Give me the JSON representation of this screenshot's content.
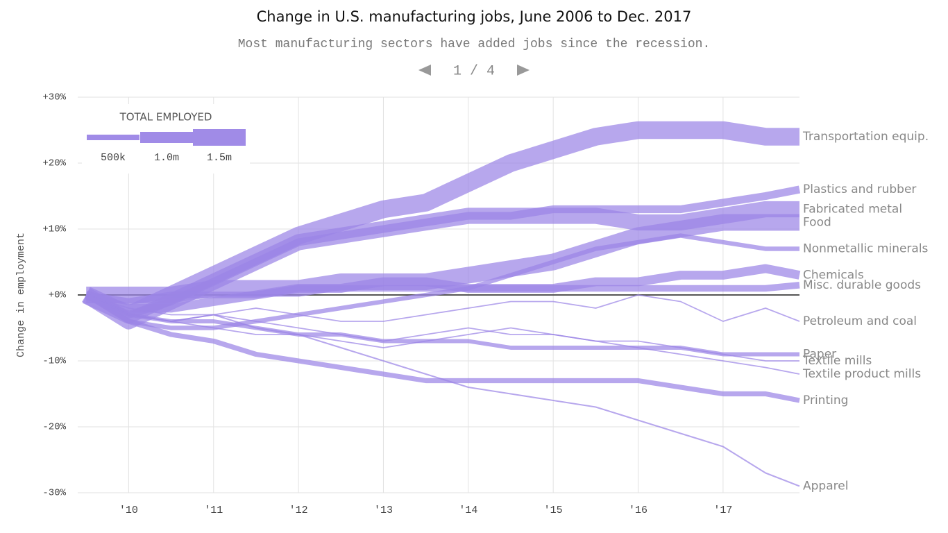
{
  "chart_data": {
    "type": "line",
    "title": "Change in U.S. manufacturing jobs, June 2006 to Dec. 2017",
    "subtitle": "Most manufacturing sectors have added jobs since the recession.",
    "pager": "1 / 4",
    "y_label": "Change in employment",
    "legend_title": "TOTAL EMPLOYED",
    "legend_widths": [
      {
        "value": 500000,
        "label": "500k"
      },
      {
        "value": 1000000,
        "label": "1.0m"
      },
      {
        "value": 1500000,
        "label": "1.5m"
      }
    ],
    "color": "#9b85e6",
    "xlim": [
      2009.4,
      2017.9
    ],
    "ylim": [
      -30,
      30
    ],
    "xticks": [
      {
        "value": 2010,
        "label": "'10"
      },
      {
        "value": 2011,
        "label": "'11"
      },
      {
        "value": 2012,
        "label": "'12"
      },
      {
        "value": 2013,
        "label": "'13"
      },
      {
        "value": 2014,
        "label": "'14"
      },
      {
        "value": 2015,
        "label": "'15"
      },
      {
        "value": 2016,
        "label": "'16"
      },
      {
        "value": 2017,
        "label": "'17"
      }
    ],
    "yticks": [
      {
        "value": 30,
        "label": "+30%"
      },
      {
        "value": 20,
        "label": "+20%"
      },
      {
        "value": 10,
        "label": "+10%"
      },
      {
        "value": 0,
        "label": "+0%"
      },
      {
        "value": -10,
        "label": "-10%"
      },
      {
        "value": -20,
        "label": "-20%"
      },
      {
        "value": -30,
        "label": "-30%"
      }
    ],
    "grid": true,
    "x": [
      2009.5,
      2010,
      2010.5,
      2011,
      2011.5,
      2012,
      2012.5,
      2013,
      2013.5,
      2014,
      2014.5,
      2015,
      2015.5,
      2016,
      2016.5,
      2017,
      2017.5,
      2017.9
    ],
    "series": [
      {
        "name": "Transportation equip.",
        "employed": 1600000,
        "values": [
          0,
          -3,
          0,
          3,
          6,
          9,
          11,
          13,
          14,
          17,
          20,
          22,
          24,
          25,
          25,
          25,
          24,
          24
        ]
      },
      {
        "name": "Plastics and rubber",
        "employed": 700000,
        "values": [
          0,
          -3,
          -1,
          2,
          5,
          8,
          9,
          10,
          11,
          12,
          12,
          13,
          13,
          13,
          13,
          14,
          15,
          16
        ]
      },
      {
        "name": "Fabricated metal",
        "employed": 1450000,
        "values": [
          0,
          -4,
          -1,
          2,
          5,
          8,
          9,
          10,
          11,
          12,
          12,
          12,
          12,
          11,
          11,
          12,
          13,
          13
        ]
      },
      {
        "name": "Food",
        "employed": 1500000,
        "values": [
          0,
          0,
          0,
          1,
          1,
          1,
          2,
          2,
          2,
          3,
          4,
          5,
          7,
          9,
          10,
          11,
          11,
          11
        ]
      },
      {
        "name": "Nonmetallic minerals",
        "employed": 400000,
        "values": [
          0,
          -4,
          -5,
          -5,
          -4,
          -3,
          -2,
          -1,
          0,
          1,
          3,
          5,
          7,
          8,
          9,
          8,
          7,
          7
        ]
      },
      {
        "name": "Chemicals",
        "employed": 800000,
        "values": [
          0,
          -2,
          -2,
          -1,
          0,
          1,
          1,
          2,
          2,
          1,
          1,
          1,
          2,
          2,
          3,
          3,
          4,
          3
        ]
      },
      {
        "name": "Misc. durable goods",
        "employed": 600000,
        "values": [
          0,
          -1,
          0,
          0,
          0,
          1,
          1,
          1,
          1,
          1,
          1,
          1,
          1,
          1,
          1,
          1,
          1,
          1.5
        ]
      },
      {
        "name": "Petroleum and coal",
        "employed": 110000,
        "values": [
          0,
          -2,
          -3,
          -3,
          -2,
          -3,
          -4,
          -4,
          -3,
          -2,
          -1,
          -1,
          -2,
          0,
          -1,
          -4,
          -2,
          -4
        ]
      },
      {
        "name": "Paper",
        "employed": 370000,
        "values": [
          0,
          -3,
          -4,
          -4,
          -5,
          -6,
          -6,
          -7,
          -7,
          -7,
          -8,
          -8,
          -8,
          -8,
          -8,
          -9,
          -9,
          -9
        ]
      },
      {
        "name": "Textile mills",
        "employed": 110000,
        "values": [
          0,
          -3,
          -4,
          -3,
          -4,
          -5,
          -6,
          -7,
          -6,
          -5,
          -6,
          -6,
          -7,
          -7,
          -8,
          -9,
          -10,
          -10
        ]
      },
      {
        "name": "Textile product mills",
        "employed": 115000,
        "values": [
          0,
          -3,
          -4,
          -5,
          -6,
          -6,
          -7,
          -8,
          -7,
          -6,
          -5,
          -6,
          -7,
          -8,
          -9,
          -10,
          -11,
          -12
        ]
      },
      {
        "name": "Printing",
        "employed": 450000,
        "values": [
          0,
          -4,
          -6,
          -7,
          -9,
          -10,
          -11,
          -12,
          -13,
          -13,
          -13,
          -13,
          -13,
          -13,
          -14,
          -15,
          -15,
          -16
        ]
      },
      {
        "name": "Apparel",
        "employed": 130000,
        "values": [
          0,
          -3,
          -4,
          -3,
          -5,
          -6,
          -8,
          -10,
          -12,
          -14,
          -15,
          -16,
          -17,
          -19,
          -21,
          -23,
          -27,
          -29
        ]
      }
    ]
  }
}
